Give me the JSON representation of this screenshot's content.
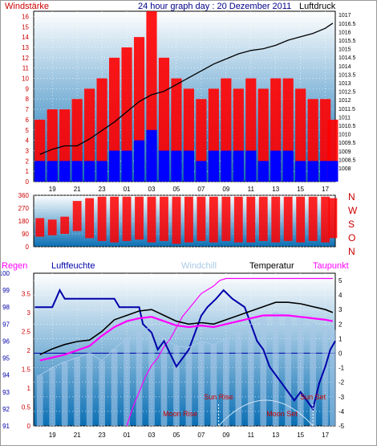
{
  "header": {
    "left_label": "Windstärke",
    "title": "24 hour graph day : 20 Dezember 2011",
    "right_label": "Luftdruck"
  },
  "colors": {
    "background": "#ffffff",
    "frame": "#000000",
    "wind_gust": "#ff0000",
    "wind_avg": "#0000ff",
    "pressure": "#000000",
    "humidity": "#0000aa",
    "rain": "#ff00ff",
    "dewpoint": "#ff00ff",
    "windchill": "#a8c8e8",
    "temperature": "#000000",
    "sun_label": "#cc0000",
    "left_axis": "#cc0000",
    "pressure_axis": "#000000",
    "gradient_top": "#ffffff",
    "gradient_bottom": "#0a6fb4"
  },
  "chart_data": [
    {
      "id": "wind_pressure",
      "type": "bar",
      "title": "24 hour graph day : 20 Dezember 2011",
      "y_left_label": "Windstärke",
      "y_left_range": [
        0,
        16.5
      ],
      "y_left_ticks": [
        "0",
        "1",
        "2",
        "3",
        "4",
        "5",
        "6",
        "7",
        "8",
        "9",
        "10",
        "11",
        "12",
        "13",
        "14",
        "15",
        "16"
      ],
      "y_right_label": "Luftdruck",
      "y_right_range": [
        1007.2,
        1017.2
      ],
      "y_right_ticks": [
        "1008",
        "1008.5",
        "1009",
        "1009.5",
        "1010",
        "1010.5",
        "1011",
        "1011.5",
        "1012",
        "1012.5",
        "1013",
        "1013.5",
        "1014",
        "1014.5",
        "1015",
        "1015.5",
        "1016",
        "1016.5",
        "1017"
      ],
      "x_range": [
        17.5,
        41.8
      ],
      "x_ticks": [
        "19",
        "21",
        "23",
        "01",
        "03",
        "05",
        "07",
        "09",
        "11",
        "13",
        "15",
        "17"
      ],
      "x_tick_values": [
        19,
        21,
        23,
        25,
        27,
        29,
        31,
        33,
        35,
        37,
        39,
        41
      ],
      "grid": true,
      "series": [
        {
          "name": "Windstärke",
          "kind": "bars",
          "x": [
            18.0,
            19.0,
            20.0,
            21.0,
            22.0,
            23.0,
            24.0,
            25.0,
            26.0,
            27.0,
            28.0,
            29.0,
            30.0,
            31.0,
            32.0,
            33.0,
            34.0,
            35.0,
            36.0,
            37.0,
            38.0,
            39.0,
            40.0,
            41.0,
            41.6
          ],
          "gust": [
            6,
            7,
            7,
            8,
            9,
            10,
            12,
            13,
            14,
            16.5,
            12,
            10,
            9,
            8,
            9,
            10,
            9,
            10,
            9,
            10,
            10,
            9,
            8,
            8,
            6
          ],
          "avg": [
            2,
            2,
            2,
            2,
            2,
            2,
            3,
            3,
            4,
            5,
            3,
            3,
            3,
            2,
            3,
            3,
            3,
            3,
            2,
            3,
            3,
            2,
            2,
            2,
            2
          ]
        },
        {
          "name": "Luftdruck",
          "kind": "line",
          "x": [
            18.0,
            19.0,
            20.0,
            21.0,
            22.0,
            23.0,
            24.0,
            25.0,
            26.0,
            27.0,
            28.0,
            29.0,
            30.0,
            31.0,
            32.0,
            33.0,
            34.0,
            35.0,
            36.0,
            37.0,
            38.0,
            39.0,
            40.0,
            41.0,
            41.6
          ],
          "y": [
            1008.8,
            1009.1,
            1009.3,
            1009.3,
            1009.7,
            1010.2,
            1010.7,
            1011.3,
            1011.9,
            1012.3,
            1012.5,
            1012.9,
            1013.3,
            1013.7,
            1014.1,
            1014.4,
            1014.7,
            1014.9,
            1015.0,
            1015.2,
            1015.5,
            1015.7,
            1015.9,
            1016.2,
            1016.5
          ]
        }
      ]
    },
    {
      "id": "wind_direction",
      "type": "line",
      "y_range": [
        0,
        360
      ],
      "y_ticks": [
        "0",
        "90",
        "180",
        "270",
        "360"
      ],
      "y_right_labels": [
        "N",
        "W",
        "S",
        "O",
        "N"
      ],
      "x_range": [
        17.5,
        41.8
      ],
      "series": [
        {
          "name": "Windrichtung",
          "x": [
            18.0,
            19.0,
            20.0,
            21.0,
            22.0,
            23.0,
            24.0,
            25.0,
            26.0,
            27.0,
            28.0,
            29.0,
            30.0,
            31.0,
            32.0,
            33.0,
            34.0,
            35.0,
            36.0,
            37.0,
            38.0,
            39.0,
            40.0,
            41.0,
            41.6
          ],
          "low": [
            70,
            80,
            90,
            110,
            60,
            40,
            30,
            40,
            50,
            30,
            40,
            20,
            30,
            40,
            30,
            40,
            30,
            30,
            40,
            30,
            40,
            30,
            40,
            30,
            60
          ],
          "high": [
            200,
            190,
            210,
            320,
            340,
            350,
            350,
            350,
            350,
            350,
            350,
            350,
            350,
            350,
            350,
            350,
            350,
            350,
            350,
            350,
            350,
            350,
            350,
            350,
            340
          ]
        }
      ]
    },
    {
      "id": "temp_humidity",
      "type": "line",
      "legend": [
        "Regen",
        "Luftfeuchte",
        "Windchill",
        "Temperatur",
        "Taupunkt"
      ],
      "y_left_range": [
        91,
        100
      ],
      "y_left_ticks": [
        "91",
        "92",
        "93",
        "94",
        "95",
        "96",
        "97",
        "98",
        "99",
        "100"
      ],
      "y_inner_ticks": [
        "0",
        "0.5",
        "1",
        "1.5",
        "2",
        "2.5",
        "3",
        "3.5"
      ],
      "y_right_range": [
        -5,
        5.5
      ],
      "y_right_ticks": [
        "-5",
        "-4",
        "-3",
        "-2",
        "-1",
        "0",
        "1",
        "2",
        "3",
        "4",
        "5"
      ],
      "x_range": [
        17.5,
        41.8
      ],
      "x_ticks": [
        "19",
        "21",
        "23",
        "01",
        "03",
        "05",
        "07",
        "09",
        "11",
        "13",
        "15",
        "17"
      ],
      "x_tick_values": [
        19,
        21,
        23,
        25,
        27,
        29,
        31,
        33,
        35,
        37,
        39,
        41
      ],
      "annotations": [
        {
          "text": "Sun Rise",
          "x": 32.4
        },
        {
          "text": "Sun Set",
          "x": 40.0
        },
        {
          "text": "Moon Rise",
          "x": 29.3
        },
        {
          "text": "Moon Set",
          "x": 37.5
        }
      ],
      "series": [
        {
          "name": "Temperatur",
          "x": [
            18.0,
            19.0,
            20.0,
            21.0,
            22.0,
            23.0,
            24.0,
            25.0,
            26.0,
            27.0,
            28.0,
            29.0,
            30.0,
            31.0,
            32.0,
            33.0,
            34.0,
            35.0,
            36.0,
            37.0,
            38.0,
            39.0,
            40.0,
            41.0,
            41.6
          ],
          "y": [
            -0.1,
            0.3,
            0.6,
            0.8,
            0.9,
            1.5,
            2.3,
            2.6,
            2.9,
            3.0,
            2.6,
            2.2,
            2.0,
            2.1,
            2.0,
            2.3,
            2.6,
            2.9,
            3.2,
            3.5,
            3.5,
            3.4,
            3.2,
            3.0,
            2.8
          ]
        },
        {
          "name": "Taupunkt",
          "x": [
            18.0,
            19.0,
            20.0,
            21.0,
            22.0,
            23.0,
            24.0,
            25.0,
            26.0,
            27.0,
            28.0,
            29.0,
            30.0,
            31.0,
            32.0,
            33.0,
            34.0,
            35.0,
            36.0,
            37.0,
            38.0,
            39.0,
            40.0,
            41.0,
            41.6
          ],
          "y": [
            -0.5,
            -0.3,
            -0.1,
            0.2,
            0.5,
            1.2,
            1.8,
            2.2,
            2.4,
            2.5,
            2.2,
            1.9,
            1.8,
            1.9,
            1.8,
            2.0,
            2.2,
            2.4,
            2.6,
            2.6,
            2.6,
            2.5,
            2.4,
            2.3,
            2.2
          ]
        },
        {
          "name": "Windchill",
          "x": [
            18.0,
            19.0,
            20.0,
            21.0,
            22.0,
            23.0,
            24.0,
            25.0,
            26.0,
            27.0,
            28.0,
            29.0,
            30.0,
            31.0,
            32.0,
            33.0,
            34.0,
            35.0,
            36.0,
            37.0,
            38.0,
            39.0,
            40.0,
            41.0,
            41.6
          ],
          "y": [
            -1.5,
            -1.0,
            -0.6,
            -0.3,
            0.0,
            -0.5,
            0.3,
            1.0,
            1.5,
            1.8,
            1.0,
            0.5,
            0.4,
            0.8,
            0.6,
            1.0,
            1.5,
            2.0,
            2.4,
            2.8,
            2.6,
            2.4,
            2.0,
            1.8,
            1.6
          ]
        },
        {
          "name": "Luftfeuchte",
          "x": [
            17.6,
            19.0,
            19.3,
            19.6,
            20.0,
            24.0,
            24.4,
            26.0,
            26.3,
            27.0,
            27.5,
            28.0,
            29.0,
            29.5,
            30.0,
            30.5,
            31.0,
            31.5,
            32.2,
            32.8,
            33.5,
            34.5,
            35.0,
            35.5,
            36.0,
            36.5,
            37.5,
            38.5,
            39.0,
            40.0,
            40.5,
            41.0,
            41.4,
            41.8
          ],
          "y": [
            98,
            98,
            98.5,
            99,
            98.5,
            98.5,
            98,
            98,
            97,
            96.5,
            95.5,
            96,
            94.5,
            95,
            95.5,
            96.5,
            97.5,
            98,
            98.5,
            99,
            98.5,
            98,
            97,
            96,
            95.5,
            94.5,
            93.5,
            92.5,
            93,
            92,
            93.5,
            94.5,
            95.5,
            96
          ]
        },
        {
          "name": "Regen",
          "x": [
            25.0,
            25.5,
            26.0,
            26.5,
            27.0,
            27.5,
            28.0,
            28.5,
            29.0,
            29.5,
            30.0,
            30.5,
            31.0,
            31.5,
            32.0,
            32.5,
            33.0,
            41.6
          ],
          "y": [
            0,
            0.5,
            0.9,
            1.3,
            1.6,
            1.8,
            2.1,
            2.3,
            2.6,
            2.9,
            3.1,
            3.3,
            3.5,
            3.6,
            3.7,
            3.85,
            3.9,
            3.9
          ]
        }
      ]
    }
  ]
}
